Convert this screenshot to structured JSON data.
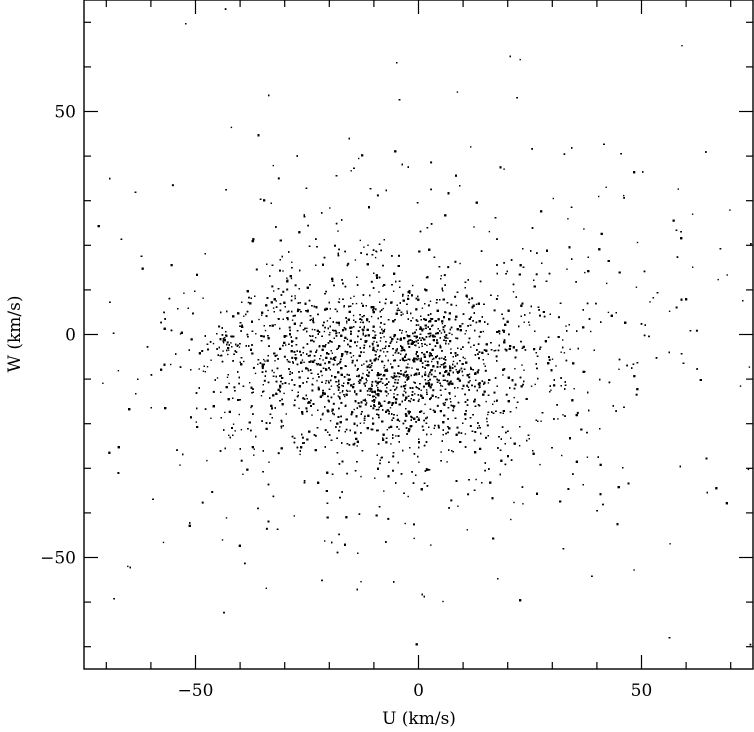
{
  "chart_data": {
    "type": "scatter",
    "title": "",
    "xlabel": "U (km/s)",
    "ylabel": "W (km/s)",
    "xlim": [
      -75,
      75
    ],
    "ylim": [
      -75,
      75
    ],
    "x_ticks": [
      -50,
      0,
      50
    ],
    "y_ticks": [
      -50,
      0,
      50
    ],
    "x_tick_labels": [
      "−50",
      "0",
      "50"
    ],
    "y_tick_labels": [
      "−50",
      "0",
      "50"
    ],
    "grid": false,
    "marker_color": "#000000",
    "points_shown": 9000,
    "distribution": {
      "description_of_density": "dense elongated cloud of stellar velocities",
      "core_centers": [
        {
          "x": -12,
          "y": -7,
          "sx": 17,
          "sy": 10,
          "weight": 0.42
        },
        {
          "x": 3,
          "y": -8,
          "sx": 11,
          "sy": 8,
          "weight": 0.16
        },
        {
          "x": -27,
          "y": -2,
          "sx": 7,
          "sy": 7,
          "weight": 0.06
        },
        {
          "x": -43,
          "y": -1.5,
          "sx": 1.6,
          "sy": 1.4,
          "weight": 0.012
        },
        {
          "x": -3,
          "y": -5,
          "sx": 32,
          "sy": 19,
          "weight": 0.3
        },
        {
          "x": 0,
          "y": 0,
          "sx": 60,
          "sy": 45,
          "weight": 0.068
        }
      ]
    }
  }
}
